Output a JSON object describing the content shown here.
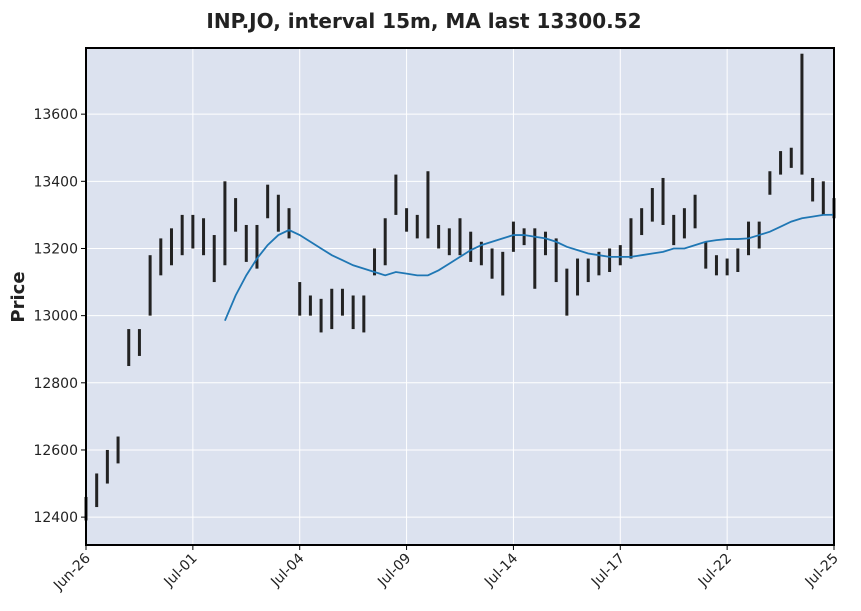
{
  "chart_data": {
    "type": "ohlc",
    "title": "INP.JO, interval 15m, MA last 13300.52",
    "ylabel": "Price",
    "xlim": [
      0,
      70
    ],
    "ylim": [
      12317,
      13797
    ],
    "xticks": [
      {
        "value": 0,
        "label": "Jun-26"
      },
      {
        "value": 10,
        "label": "Jul-01"
      },
      {
        "value": 20,
        "label": "Jul-04"
      },
      {
        "value": 30,
        "label": "Jul-09"
      },
      {
        "value": 40,
        "label": "Jul-14"
      },
      {
        "value": 50,
        "label": "Jul-17"
      },
      {
        "value": 60,
        "label": "Jul-22"
      },
      {
        "value": 70,
        "label": "Jul-25"
      }
    ],
    "yticks": [
      12400,
      12600,
      12800,
      13000,
      13200,
      13400,
      13600
    ],
    "grid": true,
    "series": [
      {
        "color": "#222222",
        "low": [
          12390,
          12430,
          12500,
          12560,
          12850,
          12880,
          13000,
          13120,
          13150,
          13180,
          13200,
          13180,
          13100,
          13150,
          13250,
          13160,
          13140,
          13290,
          13250,
          13230,
          13000,
          13000,
          12950,
          12960,
          13000,
          12960,
          12950,
          13120,
          13150,
          13300,
          13250,
          13230,
          13230,
          13200,
          13180,
          13180,
          13160,
          13150,
          13110,
          13060,
          13190,
          13210,
          13080,
          13180,
          13100,
          13000,
          13060,
          13100,
          13120,
          13130,
          13150,
          13170,
          13240,
          13280,
          13270,
          13210,
          13230,
          13260,
          13140,
          13120,
          13120,
          13130,
          13180,
          13200,
          13360,
          13420,
          13440,
          13420,
          13340,
          13300,
          13290
        ],
        "high": [
          12460,
          12530,
          12600,
          12640,
          12960,
          12960,
          13180,
          13230,
          13260,
          13300,
          13300,
          13290,
          13240,
          13400,
          13350,
          13270,
          13270,
          13390,
          13360,
          13320,
          13100,
          13060,
          13050,
          13080,
          13080,
          13060,
          13060,
          13200,
          13290,
          13420,
          13320,
          13300,
          13430,
          13270,
          13260,
          13290,
          13250,
          13220,
          13200,
          13190,
          13280,
          13260,
          13260,
          13250,
          13230,
          13140,
          13170,
          13170,
          13190,
          13200,
          13210,
          13290,
          13320,
          13380,
          13410,
          13300,
          13320,
          13360,
          13220,
          13180,
          13170,
          13200,
          13280,
          13280,
          13430,
          13490,
          13500,
          13780,
          13410,
          13400,
          13350
        ]
      },
      {
        "color": "#1f77b4",
        "values": [
          null,
          null,
          null,
          null,
          null,
          null,
          null,
          null,
          null,
          null,
          null,
          null,
          null,
          12985,
          13060,
          13120,
          13170,
          13210,
          13240,
          13255,
          13240,
          13220,
          13200,
          13180,
          13165,
          13150,
          13140,
          13130,
          13120,
          13130,
          13125,
          13120,
          13120,
          13135,
          13155,
          13175,
          13195,
          13210,
          13220,
          13230,
          13240,
          13240,
          13235,
          13230,
          13220,
          13205,
          13195,
          13185,
          13180,
          13175,
          13175,
          13175,
          13180,
          13185,
          13190,
          13200,
          13200,
          13210,
          13220,
          13225,
          13228,
          13228,
          13230,
          13240,
          13250,
          13265,
          13280,
          13290,
          13295,
          13300,
          13300.52
        ]
      }
    ]
  }
}
